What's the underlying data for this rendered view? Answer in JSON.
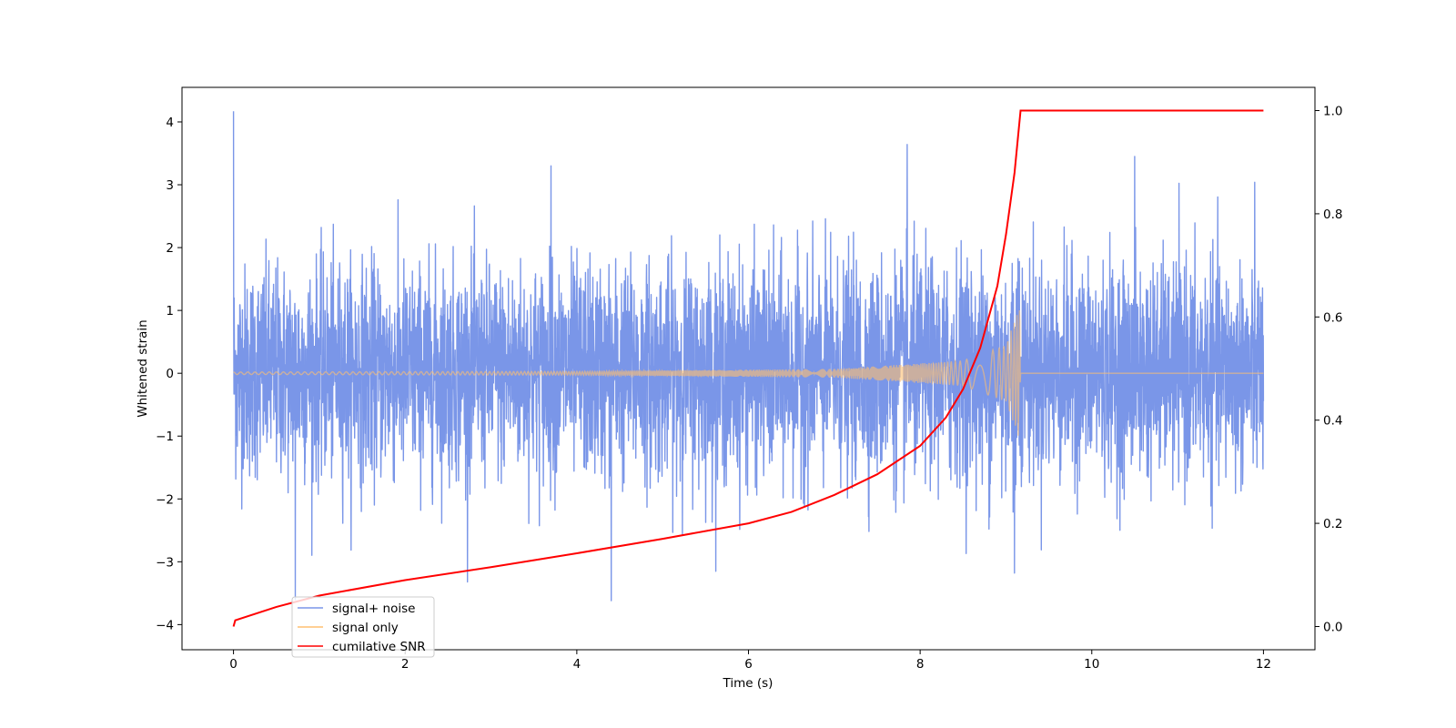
{
  "chart_data": {
    "type": "line",
    "title": "",
    "xlabel": "Time (s)",
    "ylabel": "Whitened strain",
    "ylabel_right": "",
    "xlim": [
      -0.6,
      12.6
    ],
    "ylim": [
      -4.4,
      4.55
    ],
    "ylim_right": [
      -0.045,
      1.045
    ],
    "x_ticks": [
      0,
      2,
      4,
      6,
      8,
      10,
      12
    ],
    "y_ticks": [
      -4,
      -3,
      -2,
      -1,
      0,
      1,
      2,
      3,
      4
    ],
    "y_ticks_right": [
      0.0,
      0.2,
      0.4,
      0.6,
      0.8,
      1.0
    ],
    "x_tick_labels": [
      "0",
      "2",
      "4",
      "6",
      "8",
      "10",
      "12"
    ],
    "y_tick_labels": [
      "−4",
      "−3",
      "−2",
      "−1",
      "0",
      "1",
      "2",
      "3",
      "4"
    ],
    "y_tick_labels_right": [
      "0.0",
      "0.2",
      "0.4",
      "0.6",
      "0.8",
      "1.0"
    ],
    "grid": false,
    "legend_placement": "bottom-left",
    "merger_time": 9.17,
    "series": [
      {
        "name": "signal+ noise",
        "axis": "left",
        "color": "#7a96e8",
        "x_range": [
          0,
          12
        ],
        "description": "whitened white-noise strain with chirp added",
        "envelope_typical": [
          -1.8,
          2.2
        ],
        "extremes": [
          {
            "x": 0.0,
            "y": 4.17
          },
          {
            "x": 0.72,
            "y": -3.6
          },
          {
            "x": 3.7,
            "y": 3.3
          },
          {
            "x": 4.4,
            "y": -3.62
          },
          {
            "x": 7.85,
            "y": 3.64
          },
          {
            "x": 9.1,
            "y": -3.18
          },
          {
            "x": 10.5,
            "y": 3.45
          }
        ]
      },
      {
        "name": "signal only",
        "axis": "left",
        "color": "#ffbf70",
        "x_range": [
          0,
          12
        ],
        "description": "inspiral chirp, amplitude rising to merger then zero",
        "amplitude_points": [
          {
            "x": 0.0,
            "y": 0.02
          },
          {
            "x": 4.0,
            "y": 0.03
          },
          {
            "x": 7.0,
            "y": 0.07
          },
          {
            "x": 8.5,
            "y": 0.2
          },
          {
            "x": 9.0,
            "y": 0.45
          },
          {
            "x": 9.17,
            "y": 1.1
          }
        ]
      },
      {
        "name": "cumilative SNR",
        "axis": "right",
        "color": "#ff0000",
        "x": [
          0.0,
          0.02,
          0.5,
          1.0,
          2.0,
          3.0,
          4.0,
          5.0,
          6.0,
          6.5,
          7.0,
          7.5,
          8.0,
          8.3,
          8.5,
          8.7,
          8.9,
          9.0,
          9.1,
          9.17,
          12.0
        ],
        "values": [
          0.0,
          0.012,
          0.038,
          0.06,
          0.09,
          0.115,
          0.142,
          0.17,
          0.2,
          0.222,
          0.255,
          0.295,
          0.35,
          0.405,
          0.46,
          0.54,
          0.66,
          0.76,
          0.88,
          1.0,
          1.0
        ]
      }
    ]
  }
}
